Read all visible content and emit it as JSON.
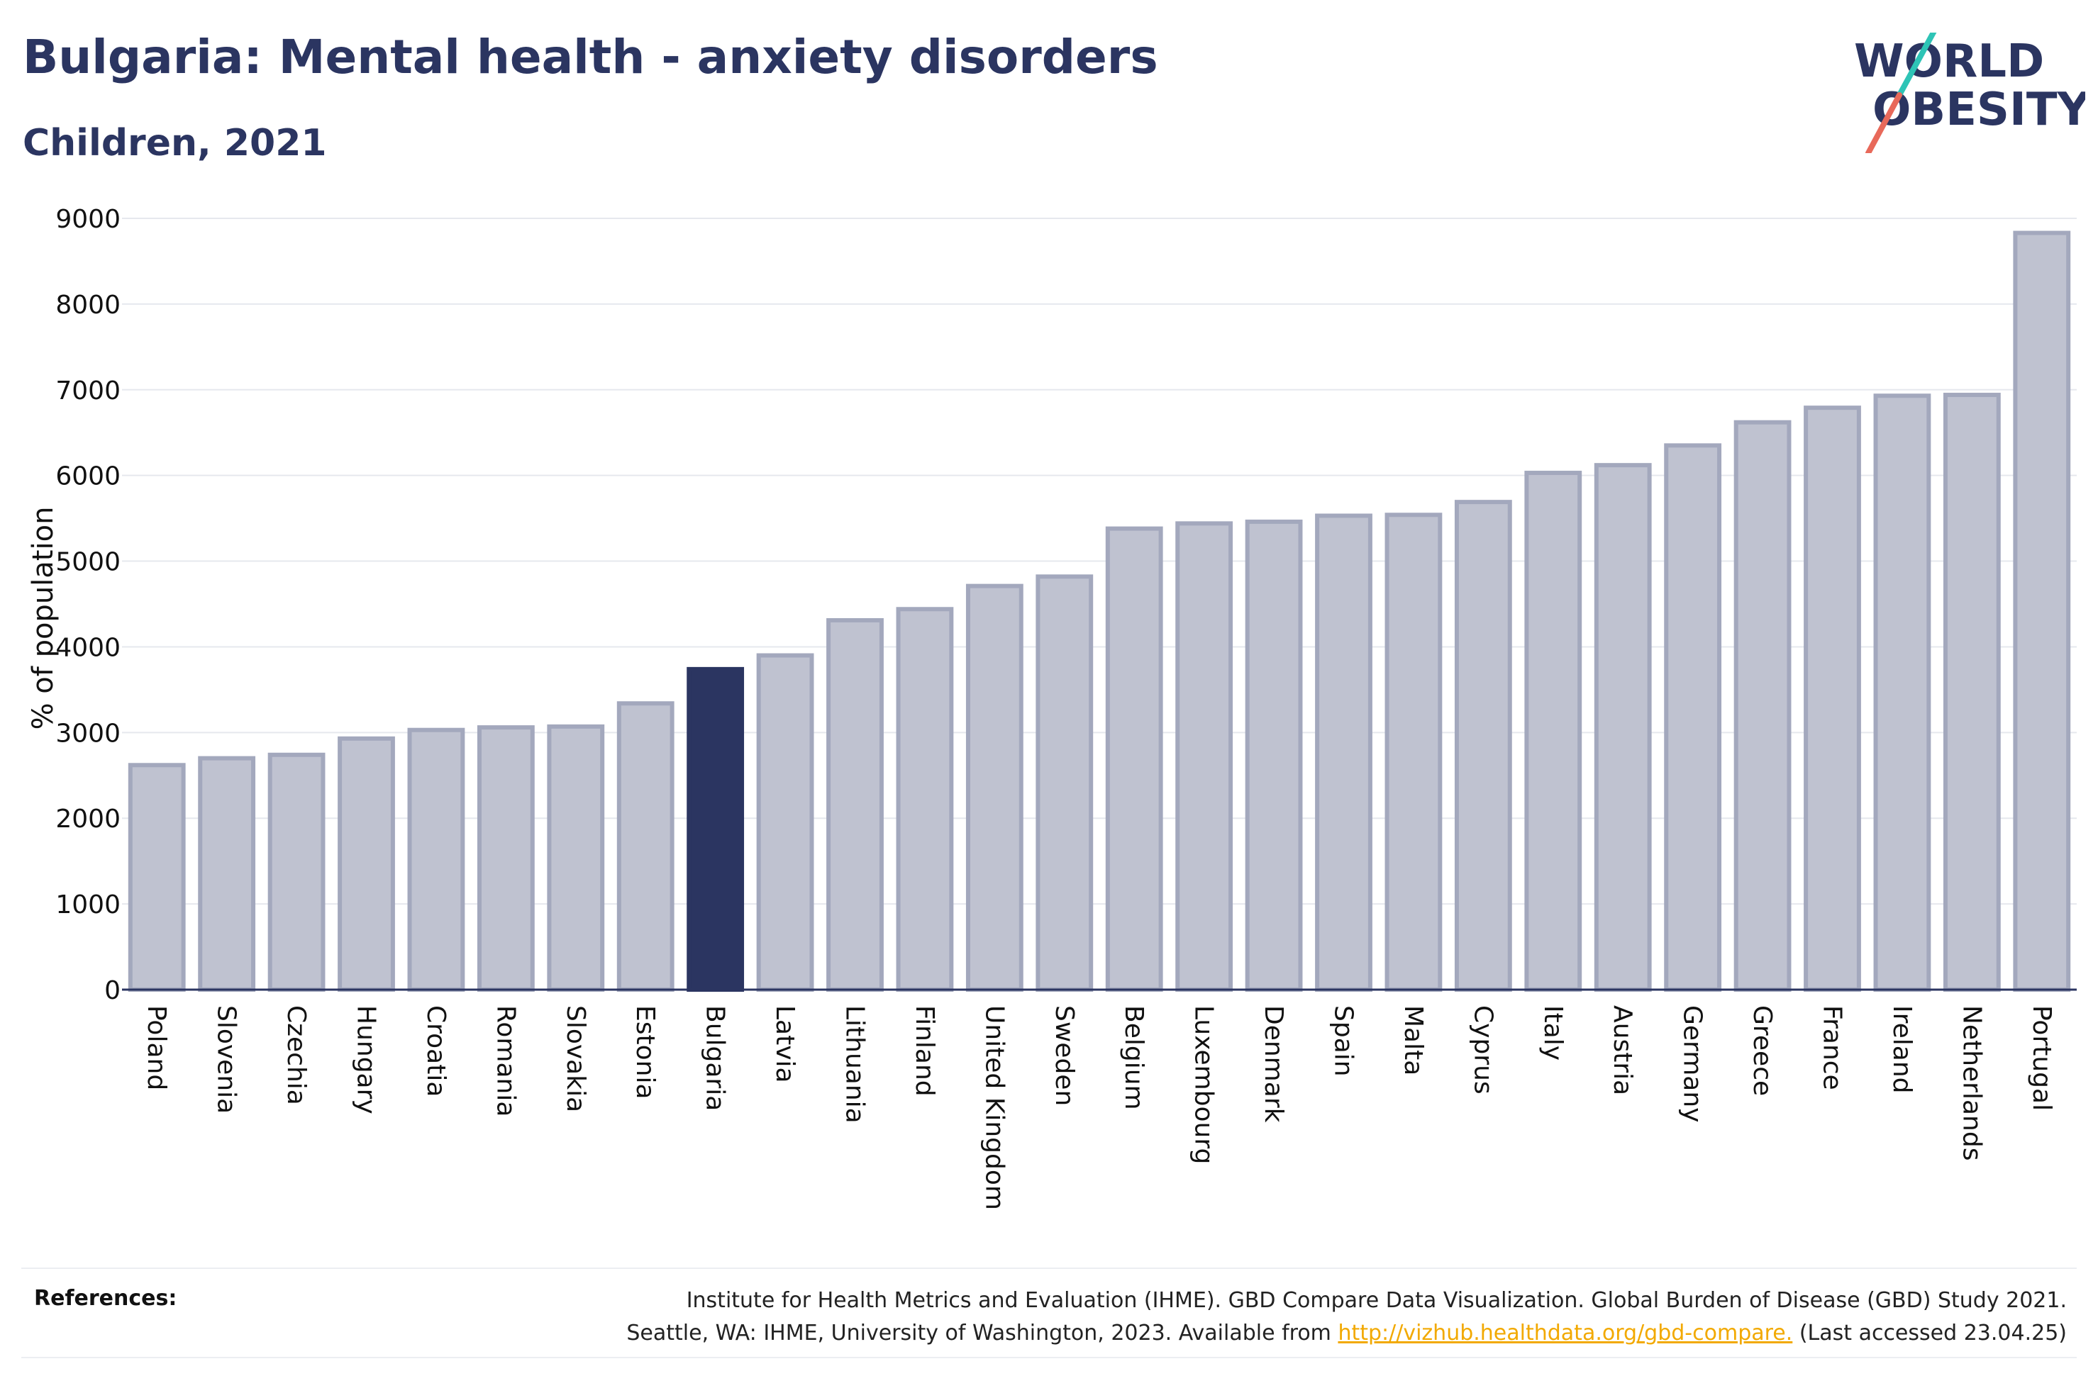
{
  "header": {
    "title": "Bulgaria: Mental health - anxiety disorders",
    "subtitle": "Children, 2021"
  },
  "logo": {
    "line1": "WORLD",
    "line2": "OBESITY",
    "accent_colors": [
      "#2ec4b6",
      "#e8695a"
    ]
  },
  "colors": {
    "highlight": "#2b3561",
    "bar_fill": "#bfc2d0",
    "bar_stroke": "#a3a8bd",
    "grid": "#e6e8ee"
  },
  "chart_data": {
    "type": "bar",
    "ylabel": "% of population",
    "ylim": [
      0,
      9000
    ],
    "yticks": [
      0,
      1000,
      2000,
      3000,
      4000,
      5000,
      6000,
      7000,
      8000,
      9000
    ],
    "grid": true,
    "highlight": "Bulgaria",
    "categories": [
      "Poland",
      "Slovenia",
      "Czechia",
      "Hungary",
      "Croatia",
      "Romania",
      "Slovakia",
      "Estonia",
      "Bulgaria",
      "Latvia",
      "Lithuania",
      "Finland",
      "United Kingdom",
      "Sweden",
      "Belgium",
      "Luxembourg",
      "Denmark",
      "Spain",
      "Malta",
      "Cyprus",
      "Italy",
      "Austria",
      "Germany",
      "Greece",
      "France",
      "Ireland",
      "Netherlands",
      "Portugal"
    ],
    "values": [
      2620,
      2700,
      2740,
      2930,
      3030,
      3060,
      3070,
      3340,
      3740,
      3900,
      4310,
      4440,
      4710,
      4820,
      5380,
      5440,
      5460,
      5530,
      5540,
      5690,
      6030,
      6120,
      6350,
      6620,
      6790,
      6930,
      6940,
      8830
    ]
  },
  "references": {
    "label": "References:",
    "line1": "Institute for Health Metrics and Evaluation (IHME). GBD Compare Data Visualization. Global Burden of Disease (GBD) Study 2021.",
    "line2_prefix": "Seattle, WA: IHME, University of Washington, 2023. Available from ",
    "link": "http://vizhub.healthdata.org/gbd-compare.",
    "line2_suffix": " (Last accessed 23.04.25)"
  }
}
